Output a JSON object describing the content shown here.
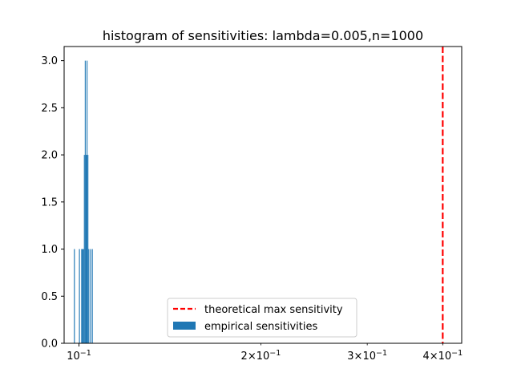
{
  "chart_data": {
    "type": "bar",
    "title": "histogram of sensitivities: lambda=0.005,n=1000",
    "xlabel": "",
    "ylabel": "",
    "x_scale": "log",
    "xlim": [
      0.0945,
      0.43
    ],
    "ylim": [
      0,
      3.15
    ],
    "grid": false,
    "legend_position": "bottom-center",
    "xticks": [
      {
        "value": 0.1,
        "label_base": "10",
        "label_exp": "−1"
      },
      {
        "value": 0.2,
        "label_base": "2×10",
        "label_exp": "−1"
      },
      {
        "value": 0.3,
        "label_base": "3×10",
        "label_exp": "−1"
      },
      {
        "value": 0.4,
        "label_base": "4×10",
        "label_exp": "−1"
      }
    ],
    "yticks": [
      {
        "value": 0,
        "label": "0.0"
      },
      {
        "value": 0.5,
        "label": "0.5"
      },
      {
        "value": 1,
        "label": "1.0"
      },
      {
        "value": 1.5,
        "label": "1.5"
      },
      {
        "value": 2,
        "label": "2.0"
      },
      {
        "value": 2.5,
        "label": "2.5"
      },
      {
        "value": 3,
        "label": "3.0"
      }
    ],
    "series": [
      {
        "name": "empirical sensitivities",
        "kind": "histogram",
        "color": "#1f77b4",
        "bins": [
          {
            "x0": 0.0981,
            "x1": 0.09845,
            "count": 1
          },
          {
            "x0": 0.1,
            "x1": 0.10035,
            "count": 1
          },
          {
            "x0": 0.10085,
            "x1": 0.1012,
            "count": 1
          },
          {
            "x0": 0.1012,
            "x1": 0.10155,
            "count": 1
          },
          {
            "x0": 0.10155,
            "x1": 0.1019,
            "count": 1
          },
          {
            "x0": 0.1019,
            "x1": 0.10225,
            "count": 2
          },
          {
            "x0": 0.10225,
            "x1": 0.1026,
            "count": 3
          },
          {
            "x0": 0.1026,
            "x1": 0.10295,
            "count": 2
          },
          {
            "x0": 0.10295,
            "x1": 0.1033,
            "count": 3
          },
          {
            "x0": 0.1033,
            "x1": 0.10365,
            "count": 2
          },
          {
            "x0": 0.10365,
            "x1": 0.104,
            "count": 1
          },
          {
            "x0": 0.10435,
            "x1": 0.1047,
            "count": 1
          },
          {
            "x0": 0.10505,
            "x1": 0.1054,
            "count": 1
          }
        ]
      },
      {
        "name": "theoretical max sensitivity",
        "kind": "vline",
        "color": "#ff0000",
        "x": 0.4,
        "linestyle": "dashed"
      }
    ]
  }
}
